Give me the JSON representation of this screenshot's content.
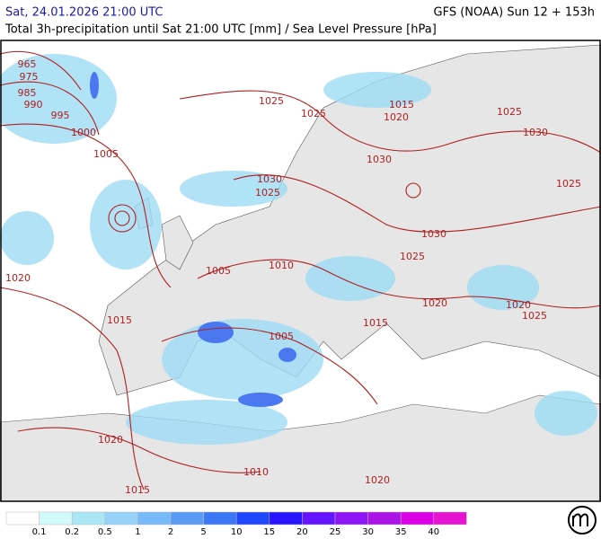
{
  "header": {
    "datetime": "Sat, 24.01.2026 21:00 UTC",
    "model": "GFS (NOAA) Sun 12 + 153h",
    "subtitle": "Total 3h-precipitation until Sat 21:00 UTC [mm] / Sea Level Pressure [hPa]"
  },
  "isobar_labels": [
    "965",
    "975",
    "985",
    "990",
    "995",
    "1000",
    "1005",
    "1025",
    "1025",
    "1015",
    "1020",
    "1025",
    "1030",
    "1030",
    "1030",
    "1025",
    "1025",
    "1030",
    "1025",
    "1010",
    "1005",
    "1020",
    "1020",
    "1020",
    "1025",
    "1015",
    "1015",
    "1005",
    "1020",
    "1010",
    "1015",
    "1020"
  ],
  "colorbar": {
    "ticks": [
      0.1,
      0.2,
      0.5,
      1,
      2,
      5,
      10,
      15,
      20,
      25,
      30,
      35,
      40
    ],
    "colors": [
      "#ffffff",
      "#d2fafa",
      "#aae6f5",
      "#96d2fa",
      "#78b9fa",
      "#5a9bf5",
      "#3c78f5",
      "#1e46ff",
      "#2814ff",
      "#6414ff",
      "#8c14f5",
      "#aa14e6",
      "#dc00e6",
      "#e614d2"
    ]
  }
}
